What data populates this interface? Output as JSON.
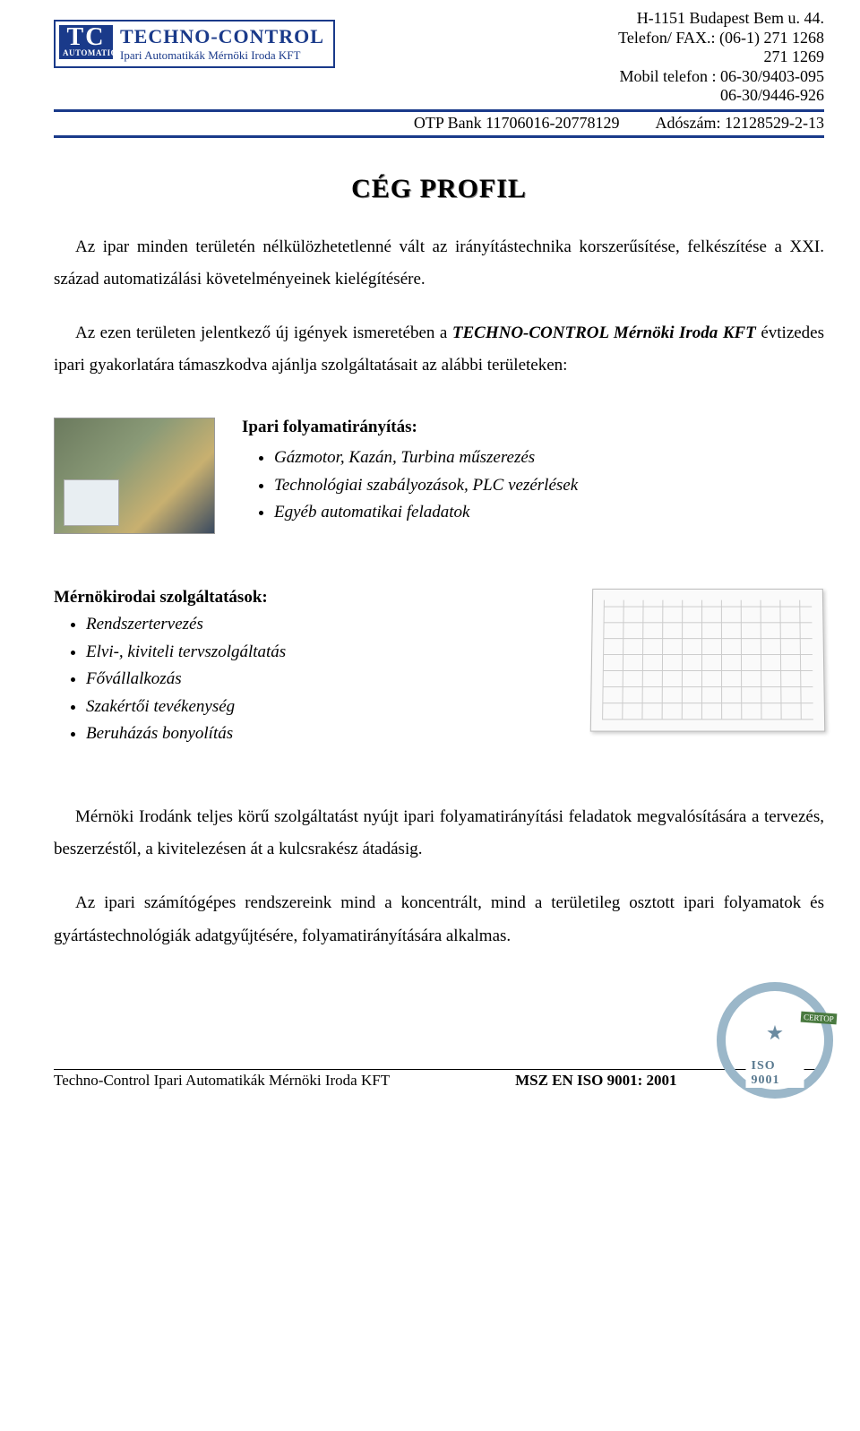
{
  "header": {
    "logo_tc": "TC",
    "logo_auto": "AUTOMATION",
    "company": "TECHNO-CONTROL",
    "subline": "Ipari Automatikák Mérnöki Iroda KFT",
    "address": "H-1151 Budapest Bem u. 44.",
    "phonefax": "Telefon/ FAX.: (06-1) 271 1268",
    "phone2": "271 1269",
    "mobile_label": "Mobil telefon :",
    "mobile1": "06-30/9403-095",
    "mobile2": "06-30/9446-926",
    "bank": "OTP Bank 11706016-20778129",
    "tax": "Adószám: 12128529-2-13"
  },
  "title": "CÉG PROFIL",
  "p1": "Az ipar minden területén nélkülözhetetlenné vált az irányítástechnika korszerűsítése, felkészítése a XXI. század automatizálási követelményeinek kielégítésére.",
  "p2_a": "Az ezen területen jelentkező új igények ismeretében a ",
  "p2_b": "TECHNO-CONTROL Mérnöki Iroda KFT",
  "p2_c": " évtizedes ipari gyakorlatára támaszkodva ajánlja szolgáltatásait az alábbi területeken:",
  "sec1": {
    "heading": "Ipari folyamatirányítás:",
    "items": [
      "Gázmotor, Kazán, Turbina műszerezés",
      "Technológiai szabályozások, PLC vezérlések",
      "Egyéb automatikai feladatok"
    ]
  },
  "sec2": {
    "heading": "Mérnökirodai szolgáltatások:",
    "items": [
      "Rendszertervezés",
      "Elvi-, kiviteli tervszolgáltatás",
      "Fővállalkozás",
      "Szakértői tevékenység",
      "Beruházás bonyolítás"
    ]
  },
  "p3": "Mérnöki Irodánk teljes körű szolgáltatást nyújt ipari folyamatirányítási feladatok megvalósítására a tervezés, beszerzéstől, a kivitelezésen át a kulcsrakész átadásig.",
  "p4": "Az ipari számítógépes rendszereink mind a koncentrált, mind a területileg osztott ipari folyamatok és gyártástechnológiák adatgyűjtésére, folyamatirányítására alkalmas.",
  "footer": {
    "left": "Techno-Control Ipari Automatikák Mérnöki Iroda KFT",
    "right": "MSZ EN ISO 9001: 2001",
    "iso": "ISO 9001",
    "certop": "CERTOP"
  },
  "colors": {
    "brand": "#1a3a8a"
  }
}
